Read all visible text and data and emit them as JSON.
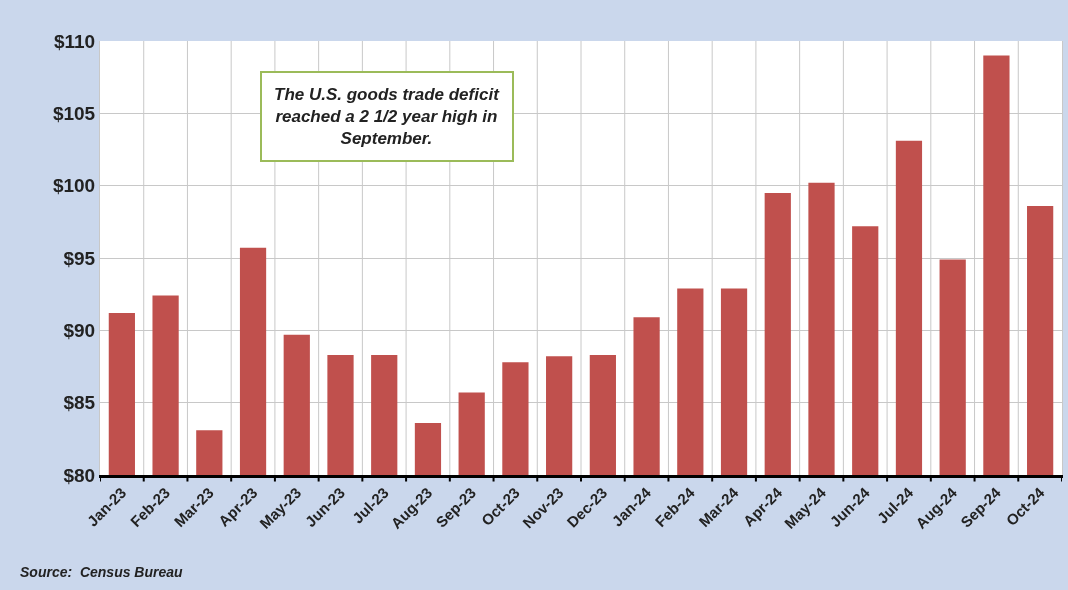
{
  "chart_data": {
    "type": "bar",
    "categories": [
      "Jan-23",
      "Feb-23",
      "Mar-23",
      "Apr-23",
      "May-23",
      "Jun-23",
      "Jul-23",
      "Aug-23",
      "Sep-23",
      "Oct-23",
      "Nov-23",
      "Dec-23",
      "Jan-24",
      "Feb-24",
      "Mar-24",
      "Apr-24",
      "May-24",
      "Jun-24",
      "Jul-24",
      "Aug-24",
      "Sep-24",
      "Oct-24"
    ],
    "values": [
      91.2,
      92.4,
      83.1,
      95.7,
      89.7,
      88.3,
      88.3,
      83.6,
      85.7,
      87.8,
      88.2,
      88.3,
      90.9,
      92.9,
      92.9,
      99.5,
      100.2,
      97.2,
      103.1,
      94.9,
      109.0,
      98.6
    ],
    "color": "#c0504d",
    "ylim": [
      80,
      110
    ],
    "yticks": [
      {
        "value": 80,
        "label": "$80"
      },
      {
        "value": 85,
        "label": "$85"
      },
      {
        "value": 90,
        "label": "$90"
      },
      {
        "value": 95,
        "label": "$95"
      },
      {
        "value": 100,
        "label": "$100"
      },
      {
        "value": 105,
        "label": "$105"
      },
      {
        "value": 110,
        "label": "$110"
      }
    ],
    "grid": true,
    "annotations": [
      "The U.S. goods trade deficit reached a 2 1/2 year high in September.",
      "Source:  Census Bureau"
    ]
  }
}
